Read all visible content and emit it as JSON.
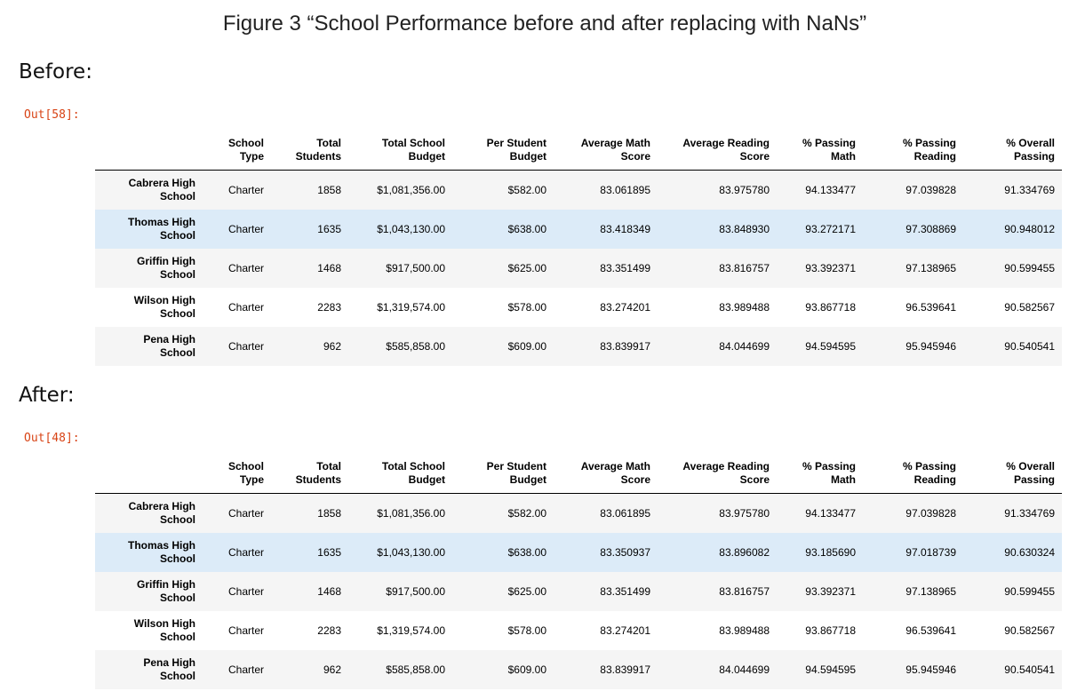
{
  "figure_title": "Figure 3 “School Performance before and after replacing with NaNs”",
  "before": {
    "label": "Before:",
    "prompt": "Out[58]:",
    "headers": [
      [
        "School",
        "Type"
      ],
      [
        "Total",
        "Students"
      ],
      [
        "Total School",
        "Budget"
      ],
      [
        "Per Student",
        "Budget"
      ],
      [
        "Average Math",
        "Score"
      ],
      [
        "Average Reading",
        "Score"
      ],
      [
        "% Passing",
        "Math"
      ],
      [
        "% Passing",
        "Reading"
      ],
      [
        "% Overall",
        "Passing"
      ]
    ],
    "rows": [
      {
        "school": [
          "Cabrera High",
          "School"
        ],
        "cells": [
          "Charter",
          "1858",
          "$1,081,356.00",
          "$582.00",
          "83.061895",
          "83.975780",
          "94.133477",
          "97.039828",
          "91.334769"
        ]
      },
      {
        "school": [
          "Thomas High",
          "School"
        ],
        "cells": [
          "Charter",
          "1635",
          "$1,043,130.00",
          "$638.00",
          "83.418349",
          "83.848930",
          "93.272171",
          "97.308869",
          "90.948012"
        ]
      },
      {
        "school": [
          "Griffin High",
          "School"
        ],
        "cells": [
          "Charter",
          "1468",
          "$917,500.00",
          "$625.00",
          "83.351499",
          "83.816757",
          "93.392371",
          "97.138965",
          "90.599455"
        ]
      },
      {
        "school": [
          "Wilson High",
          "School"
        ],
        "cells": [
          "Charter",
          "2283",
          "$1,319,574.00",
          "$578.00",
          "83.274201",
          "83.989488",
          "93.867718",
          "96.539641",
          "90.582567"
        ]
      },
      {
        "school": [
          "Pena High",
          "School"
        ],
        "cells": [
          "Charter",
          "962",
          "$585,858.00",
          "$609.00",
          "83.839917",
          "84.044699",
          "94.594595",
          "95.945946",
          "90.540541"
        ]
      }
    ]
  },
  "after": {
    "label": "After:",
    "prompt": "Out[48]:",
    "headers": [
      [
        "School",
        "Type"
      ],
      [
        "Total",
        "Students"
      ],
      [
        "Total School",
        "Budget"
      ],
      [
        "Per Student",
        "Budget"
      ],
      [
        "Average Math",
        "Score"
      ],
      [
        "Average Reading",
        "Score"
      ],
      [
        "% Passing",
        "Math"
      ],
      [
        "% Passing",
        "Reading"
      ],
      [
        "% Overall",
        "Passing"
      ]
    ],
    "rows": [
      {
        "school": [
          "Cabrera High",
          "School"
        ],
        "cells": [
          "Charter",
          "1858",
          "$1,081,356.00",
          "$582.00",
          "83.061895",
          "83.975780",
          "94.133477",
          "97.039828",
          "91.334769"
        ]
      },
      {
        "school": [
          "Thomas High",
          "School"
        ],
        "cells": [
          "Charter",
          "1635",
          "$1,043,130.00",
          "$638.00",
          "83.350937",
          "83.896082",
          "93.185690",
          "97.018739",
          "90.630324"
        ]
      },
      {
        "school": [
          "Griffin High",
          "School"
        ],
        "cells": [
          "Charter",
          "1468",
          "$917,500.00",
          "$625.00",
          "83.351499",
          "83.816757",
          "93.392371",
          "97.138965",
          "90.599455"
        ]
      },
      {
        "school": [
          "Wilson High",
          "School"
        ],
        "cells": [
          "Charter",
          "2283",
          "$1,319,574.00",
          "$578.00",
          "83.274201",
          "83.989488",
          "93.867718",
          "96.539641",
          "90.582567"
        ]
      },
      {
        "school": [
          "Pena High",
          "School"
        ],
        "cells": [
          "Charter",
          "962",
          "$585,858.00",
          "$609.00",
          "83.839917",
          "84.044699",
          "94.594595",
          "95.945946",
          "90.540541"
        ]
      }
    ]
  },
  "colors": {
    "prompt": "#d84315",
    "row_stripe": "#f5f5f5",
    "row_highlight": "#dcebf8"
  }
}
